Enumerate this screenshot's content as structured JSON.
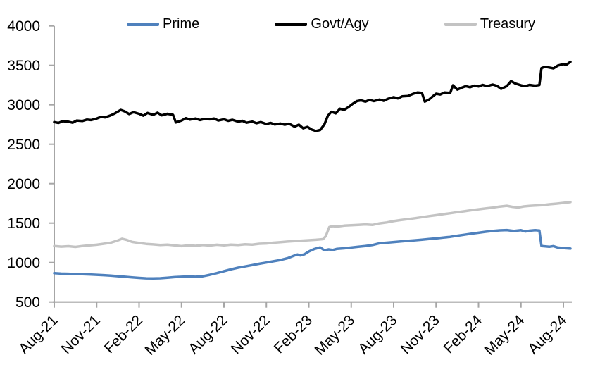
{
  "chart": {
    "background": "#ffffff",
    "axis_color": "#a6a6a6",
    "text_color": "#000000"
  },
  "chart_data": {
    "type": "line",
    "title": "",
    "xlabel": "",
    "ylabel": "",
    "grid": false,
    "legend_position": "top",
    "ylim": [
      500,
      4000
    ],
    "y_ticks": [
      4000,
      3500,
      3000,
      2500,
      2000,
      1500,
      1000,
      500
    ],
    "x_unit": "months since Aug-2021",
    "x_max": 36.5,
    "x_ticks": [
      {
        "m": 0,
        "label": "Aug-21"
      },
      {
        "m": 3,
        "label": "Nov-21"
      },
      {
        "m": 6,
        "label": "Feb-22"
      },
      {
        "m": 9,
        "label": "May-22"
      },
      {
        "m": 12,
        "label": "Aug-22"
      },
      {
        "m": 15,
        "label": "Nov-22"
      },
      {
        "m": 18,
        "label": "Feb-23"
      },
      {
        "m": 21,
        "label": "May-23"
      },
      {
        "m": 24,
        "label": "Aug-23"
      },
      {
        "m": 27,
        "label": "Nov-23"
      },
      {
        "m": 30,
        "label": "Feb-24"
      },
      {
        "m": 33,
        "label": "May-24"
      },
      {
        "m": 36,
        "label": "Aug-24"
      }
    ],
    "series": [
      {
        "name": "Prime",
        "color": "#4f81bd",
        "width": 3.5,
        "points": [
          [
            0,
            865
          ],
          [
            0.5,
            860
          ],
          [
            1,
            858
          ],
          [
            1.5,
            854
          ],
          [
            2,
            852
          ],
          [
            2.5,
            849
          ],
          [
            3,
            845
          ],
          [
            3.5,
            840
          ],
          [
            4,
            834
          ],
          [
            4.5,
            827
          ],
          [
            5,
            820
          ],
          [
            5.5,
            812
          ],
          [
            6,
            805
          ],
          [
            6.5,
            800
          ],
          [
            7,
            798
          ],
          [
            7.5,
            801
          ],
          [
            8,
            808
          ],
          [
            8.5,
            815
          ],
          [
            9,
            820
          ],
          [
            9.5,
            823
          ],
          [
            10,
            820
          ],
          [
            10.5,
            826
          ],
          [
            11,
            845
          ],
          [
            11.5,
            866
          ],
          [
            12,
            890
          ],
          [
            12.5,
            914
          ],
          [
            13,
            935
          ],
          [
            13.5,
            951
          ],
          [
            14,
            968
          ],
          [
            14.5,
            985
          ],
          [
            15,
            1000
          ],
          [
            15.5,
            1016
          ],
          [
            16,
            1032
          ],
          [
            16.5,
            1055
          ],
          [
            17,
            1090
          ],
          [
            17.2,
            1102
          ],
          [
            17.4,
            1090
          ],
          [
            17.7,
            1105
          ],
          [
            18,
            1140
          ],
          [
            18.4,
            1172
          ],
          [
            18.8,
            1192
          ],
          [
            19.1,
            1155
          ],
          [
            19.4,
            1167
          ],
          [
            19.7,
            1160
          ],
          [
            20,
            1174
          ],
          [
            20.5,
            1180
          ],
          [
            21,
            1190
          ],
          [
            21.5,
            1200
          ],
          [
            22,
            1210
          ],
          [
            22.5,
            1222
          ],
          [
            23,
            1245
          ],
          [
            23.5,
            1252
          ],
          [
            24,
            1260
          ],
          [
            24.5,
            1268
          ],
          [
            25,
            1275
          ],
          [
            25.5,
            1282
          ],
          [
            26,
            1290
          ],
          [
            26.5,
            1298
          ],
          [
            27,
            1306
          ],
          [
            27.5,
            1316
          ],
          [
            28,
            1326
          ],
          [
            28.5,
            1340
          ],
          [
            29,
            1353
          ],
          [
            29.5,
            1366
          ],
          [
            30,
            1378
          ],
          [
            30.5,
            1390
          ],
          [
            31,
            1400
          ],
          [
            31.5,
            1408
          ],
          [
            32,
            1412
          ],
          [
            32.5,
            1400
          ],
          [
            33,
            1410
          ],
          [
            33.3,
            1394
          ],
          [
            33.6,
            1404
          ],
          [
            34,
            1410
          ],
          [
            34.3,
            1406
          ],
          [
            34.45,
            1210
          ],
          [
            34.8,
            1204
          ],
          [
            35,
            1200
          ],
          [
            35.3,
            1208
          ],
          [
            35.6,
            1190
          ],
          [
            36,
            1184
          ],
          [
            36.5,
            1177
          ]
        ]
      },
      {
        "name": "Govt/Agy",
        "color": "#000000",
        "width": 3.5,
        "points": [
          [
            0,
            2780
          ],
          [
            0.3,
            2770
          ],
          [
            0.6,
            2792
          ],
          [
            1,
            2785
          ],
          [
            1.3,
            2772
          ],
          [
            1.6,
            2800
          ],
          [
            2,
            2795
          ],
          [
            2.3,
            2812
          ],
          [
            2.6,
            2806
          ],
          [
            3,
            2825
          ],
          [
            3.3,
            2846
          ],
          [
            3.6,
            2840
          ],
          [
            4,
            2866
          ],
          [
            4.3,
            2892
          ],
          [
            4.7,
            2935
          ],
          [
            5,
            2915
          ],
          [
            5.3,
            2882
          ],
          [
            5.6,
            2906
          ],
          [
            6,
            2886
          ],
          [
            6.3,
            2862
          ],
          [
            6.6,
            2896
          ],
          [
            7,
            2872
          ],
          [
            7.3,
            2900
          ],
          [
            7.6,
            2866
          ],
          [
            8,
            2886
          ],
          [
            8.4,
            2872
          ],
          [
            8.6,
            2776
          ],
          [
            9,
            2800
          ],
          [
            9.3,
            2830
          ],
          [
            9.6,
            2812
          ],
          [
            10,
            2826
          ],
          [
            10.3,
            2806
          ],
          [
            10.6,
            2820
          ],
          [
            11,
            2815
          ],
          [
            11.3,
            2826
          ],
          [
            11.6,
            2800
          ],
          [
            12,
            2816
          ],
          [
            12.3,
            2796
          ],
          [
            12.6,
            2810
          ],
          [
            13,
            2786
          ],
          [
            13.3,
            2796
          ],
          [
            13.6,
            2772
          ],
          [
            14,
            2786
          ],
          [
            14.3,
            2766
          ],
          [
            14.6,
            2780
          ],
          [
            15,
            2756
          ],
          [
            15.3,
            2770
          ],
          [
            15.6,
            2750
          ],
          [
            16,
            2762
          ],
          [
            16.3,
            2746
          ],
          [
            16.6,
            2760
          ],
          [
            17,
            2722
          ],
          [
            17.3,
            2748
          ],
          [
            17.6,
            2702
          ],
          [
            17.9,
            2720
          ],
          [
            18.2,
            2686
          ],
          [
            18.5,
            2668
          ],
          [
            18.8,
            2680
          ],
          [
            19.1,
            2750
          ],
          [
            19.35,
            2862
          ],
          [
            19.6,
            2912
          ],
          [
            19.9,
            2892
          ],
          [
            20.2,
            2950
          ],
          [
            20.5,
            2936
          ],
          [
            20.8,
            2970
          ],
          [
            21.1,
            3012
          ],
          [
            21.4,
            3046
          ],
          [
            21.7,
            3056
          ],
          [
            22,
            3040
          ],
          [
            22.3,
            3062
          ],
          [
            22.6,
            3046
          ],
          [
            23,
            3066
          ],
          [
            23.3,
            3050
          ],
          [
            23.6,
            3076
          ],
          [
            24,
            3096
          ],
          [
            24.3,
            3080
          ],
          [
            24.6,
            3106
          ],
          [
            25,
            3112
          ],
          [
            25.4,
            3140
          ],
          [
            25.7,
            3156
          ],
          [
            26,
            3150
          ],
          [
            26.2,
            3040
          ],
          [
            26.5,
            3066
          ],
          [
            26.8,
            3112
          ],
          [
            27,
            3140
          ],
          [
            27.3,
            3130
          ],
          [
            27.6,
            3156
          ],
          [
            28,
            3150
          ],
          [
            28.2,
            3246
          ],
          [
            28.5,
            3192
          ],
          [
            28.8,
            3216
          ],
          [
            29.1,
            3236
          ],
          [
            29.4,
            3222
          ],
          [
            29.7,
            3242
          ],
          [
            30,
            3232
          ],
          [
            30.3,
            3252
          ],
          [
            30.6,
            3236
          ],
          [
            31,
            3256
          ],
          [
            31.3,
            3240
          ],
          [
            31.6,
            3202
          ],
          [
            32,
            3236
          ],
          [
            32.3,
            3300
          ],
          [
            32.6,
            3270
          ],
          [
            33,
            3246
          ],
          [
            33.3,
            3236
          ],
          [
            33.6,
            3252
          ],
          [
            34,
            3242
          ],
          [
            34.3,
            3250
          ],
          [
            34.45,
            3465
          ],
          [
            34.7,
            3482
          ],
          [
            35,
            3472
          ],
          [
            35.3,
            3462
          ],
          [
            35.6,
            3496
          ],
          [
            36,
            3516
          ],
          [
            36.2,
            3506
          ],
          [
            36.5,
            3545
          ]
        ]
      },
      {
        "name": "Treasury",
        "color": "#c3c3c3",
        "width": 3.5,
        "points": [
          [
            0,
            1210
          ],
          [
            0.5,
            1202
          ],
          [
            1,
            1207
          ],
          [
            1.5,
            1198
          ],
          [
            2,
            1210
          ],
          [
            2.5,
            1218
          ],
          [
            3,
            1226
          ],
          [
            3.5,
            1238
          ],
          [
            4,
            1252
          ],
          [
            4.5,
            1280
          ],
          [
            4.8,
            1302
          ],
          [
            5.1,
            1288
          ],
          [
            5.5,
            1262
          ],
          [
            6,
            1248
          ],
          [
            6.5,
            1237
          ],
          [
            7,
            1230
          ],
          [
            7.5,
            1222
          ],
          [
            8,
            1228
          ],
          [
            8.5,
            1218
          ],
          [
            9,
            1208
          ],
          [
            9.5,
            1218
          ],
          [
            10,
            1212
          ],
          [
            10.5,
            1222
          ],
          [
            11,
            1216
          ],
          [
            11.5,
            1226
          ],
          [
            12,
            1218
          ],
          [
            12.5,
            1228
          ],
          [
            13,
            1222
          ],
          [
            13.5,
            1232
          ],
          [
            14,
            1228
          ],
          [
            14.5,
            1238
          ],
          [
            15,
            1242
          ],
          [
            15.5,
            1252
          ],
          [
            16,
            1258
          ],
          [
            16.5,
            1266
          ],
          [
            17,
            1272
          ],
          [
            17.5,
            1278
          ],
          [
            18,
            1283
          ],
          [
            18.5,
            1288
          ],
          [
            19,
            1296
          ],
          [
            19.2,
            1335
          ],
          [
            19.45,
            1450
          ],
          [
            19.7,
            1462
          ],
          [
            20,
            1455
          ],
          [
            20.5,
            1468
          ],
          [
            21,
            1472
          ],
          [
            21.5,
            1478
          ],
          [
            22,
            1483
          ],
          [
            22.5,
            1477
          ],
          [
            23,
            1496
          ],
          [
            23.5,
            1508
          ],
          [
            24,
            1525
          ],
          [
            24.5,
            1538
          ],
          [
            25,
            1550
          ],
          [
            25.5,
            1562
          ],
          [
            26,
            1575
          ],
          [
            26.5,
            1588
          ],
          [
            27,
            1600
          ],
          [
            27.5,
            1613
          ],
          [
            28,
            1625
          ],
          [
            28.5,
            1638
          ],
          [
            29,
            1650
          ],
          [
            29.5,
            1663
          ],
          [
            30,
            1675
          ],
          [
            30.5,
            1686
          ],
          [
            31,
            1696
          ],
          [
            31.5,
            1710
          ],
          [
            32,
            1720
          ],
          [
            32.4,
            1706
          ],
          [
            32.8,
            1698
          ],
          [
            33.2,
            1712
          ],
          [
            33.6,
            1718
          ],
          [
            34,
            1722
          ],
          [
            34.5,
            1728
          ],
          [
            35,
            1738
          ],
          [
            35.5,
            1746
          ],
          [
            36,
            1756
          ],
          [
            36.5,
            1766
          ]
        ]
      }
    ]
  }
}
